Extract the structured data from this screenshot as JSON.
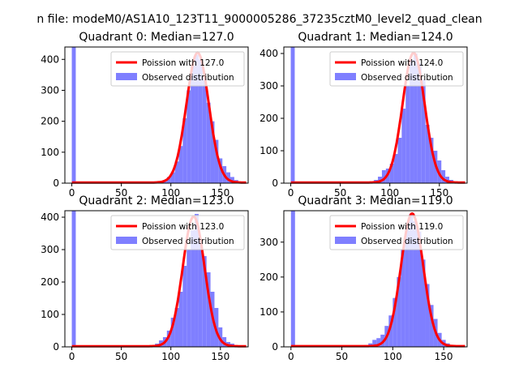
{
  "figure": {
    "suptitle": "n file: modeM0/AS1A10_123T11_9000005286_37235cztM0_level2_quad_clean"
  },
  "style": {
    "hist_color": "#7f7fff",
    "fit_color": "#ff0000",
    "axis_color": "#000000",
    "text_color": "#000000"
  },
  "chart_data": [
    {
      "type": "bar",
      "title": "Quadrant 0: Median=127.0",
      "xlim": [
        -7,
        178
      ],
      "ylim": [
        0,
        440
      ],
      "xticks": [
        0,
        50,
        100,
        150
      ],
      "yticks": [
        0,
        100,
        200,
        300,
        400
      ],
      "legend": {
        "placement": "top-right",
        "entries": [
          "Poission with 127.0",
          "Observed distribution"
        ]
      },
      "series": [
        {
          "name": "Poission with 127.0",
          "kind": "line",
          "mean": 127.0,
          "peak": 420
        },
        {
          "name": "Observed distribution",
          "kind": "histogram",
          "x": [
            0,
            88,
            92,
            96,
            100,
            104,
            108,
            112,
            116,
            120,
            124,
            128,
            132,
            136,
            140,
            144,
            148,
            152,
            156,
            160,
            164,
            168,
            172
          ],
          "values": [
            440,
            5,
            10,
            20,
            35,
            70,
            120,
            210,
            300,
            380,
            415,
            400,
            340,
            260,
            200,
            140,
            80,
            55,
            35,
            20,
            10,
            5,
            2
          ]
        }
      ]
    },
    {
      "type": "bar",
      "title": "Quadrant 1: Median=124.0",
      "xlim": [
        -7,
        178
      ],
      "ylim": [
        0,
        420
      ],
      "xticks": [
        0,
        50,
        100,
        150
      ],
      "yticks": [
        0,
        100,
        200,
        300,
        400
      ],
      "legend": {
        "placement": "top-right",
        "entries": [
          "Poission with 124.0",
          "Observed distribution"
        ]
      },
      "series": [
        {
          "name": "Poission with 124.0",
          "kind": "line",
          "mean": 124.0,
          "peak": 400
        },
        {
          "name": "Observed distribution",
          "kind": "histogram",
          "x": [
            0,
            84,
            88,
            92,
            96,
            100,
            104,
            108,
            112,
            116,
            120,
            124,
            128,
            132,
            136,
            140,
            144,
            148,
            152,
            156,
            160,
            164
          ],
          "values": [
            420,
            10,
            20,
            40,
            45,
            60,
            90,
            140,
            230,
            300,
            380,
            400,
            370,
            320,
            180,
            140,
            100,
            70,
            40,
            20,
            10,
            5
          ]
        }
      ]
    },
    {
      "type": "bar",
      "title": "Quadrant 2: Median=123.0",
      "xlim": [
        -7,
        178
      ],
      "ylim": [
        0,
        420
      ],
      "xticks": [
        0,
        50,
        100,
        150
      ],
      "yticks": [
        0,
        100,
        200,
        300,
        400
      ],
      "legend": {
        "placement": "top-right",
        "entries": [
          "Poission with 123.0",
          "Observed distribution"
        ]
      },
      "series": [
        {
          "name": "Poission with 123.0",
          "kind": "line",
          "mean": 123.0,
          "peak": 400
        },
        {
          "name": "Observed distribution",
          "kind": "histogram",
          "x": [
            0,
            80,
            84,
            88,
            92,
            96,
            100,
            104,
            108,
            112,
            116,
            120,
            124,
            128,
            132,
            136,
            140,
            144,
            148,
            152,
            156,
            160,
            164,
            168
          ],
          "values": [
            420,
            5,
            10,
            20,
            30,
            50,
            90,
            120,
            170,
            250,
            300,
            360,
            410,
            330,
            280,
            230,
            170,
            120,
            60,
            30,
            15,
            10,
            5,
            2
          ]
        }
      ]
    },
    {
      "type": "bar",
      "title": "Quadrant 3: Median=119.0",
      "xlim": [
        -7,
        173
      ],
      "ylim": [
        0,
        390
      ],
      "xticks": [
        0,
        50,
        100,
        150
      ],
      "yticks": [
        0,
        100,
        200,
        300
      ],
      "legend": {
        "placement": "top-right",
        "entries": [
          "Poission with 119.0",
          "Observed distribution"
        ]
      },
      "series": [
        {
          "name": "Poission with 119.0",
          "kind": "line",
          "mean": 119.0,
          "peak": 380
        },
        {
          "name": "Observed distribution",
          "kind": "histogram",
          "x": [
            0,
            72,
            76,
            80,
            84,
            88,
            92,
            96,
            100,
            104,
            108,
            112,
            116,
            120,
            124,
            128,
            132,
            136,
            140,
            144,
            148,
            152,
            156,
            160
          ],
          "values": [
            390,
            5,
            10,
            20,
            25,
            35,
            60,
            90,
            140,
            200,
            280,
            340,
            380,
            360,
            330,
            250,
            180,
            120,
            80,
            40,
            20,
            10,
            5,
            2
          ]
        }
      ]
    }
  ]
}
